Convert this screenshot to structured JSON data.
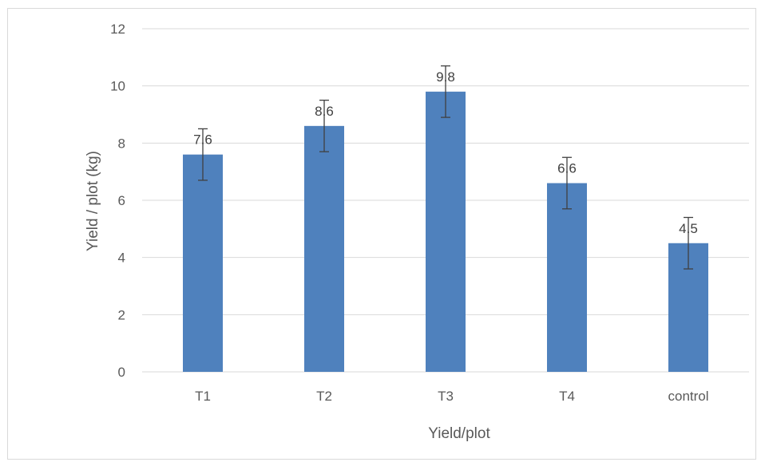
{
  "chart_data": {
    "type": "bar",
    "title": "",
    "xlabel": "Yield/plot",
    "ylabel": "Yield / plot (kg)",
    "categories": [
      "T1",
      "T2",
      "T3",
      "T4",
      "control"
    ],
    "values": [
      7.6,
      8.6,
      9.8,
      6.6,
      4.5
    ],
    "data_labels": [
      "7.6",
      "8.6",
      "9.8",
      "6.6",
      "4.5"
    ],
    "error_bars": [
      0.9,
      0.9,
      0.9,
      0.9,
      0.9
    ],
    "ylim": [
      0,
      12
    ],
    "yticks": [
      0,
      2,
      4,
      6,
      8,
      10,
      12
    ],
    "grid": true,
    "legend": "none",
    "colors": {
      "bar": "#4f81bd",
      "grid": "#d9d9d9",
      "error": "#404040"
    }
  }
}
